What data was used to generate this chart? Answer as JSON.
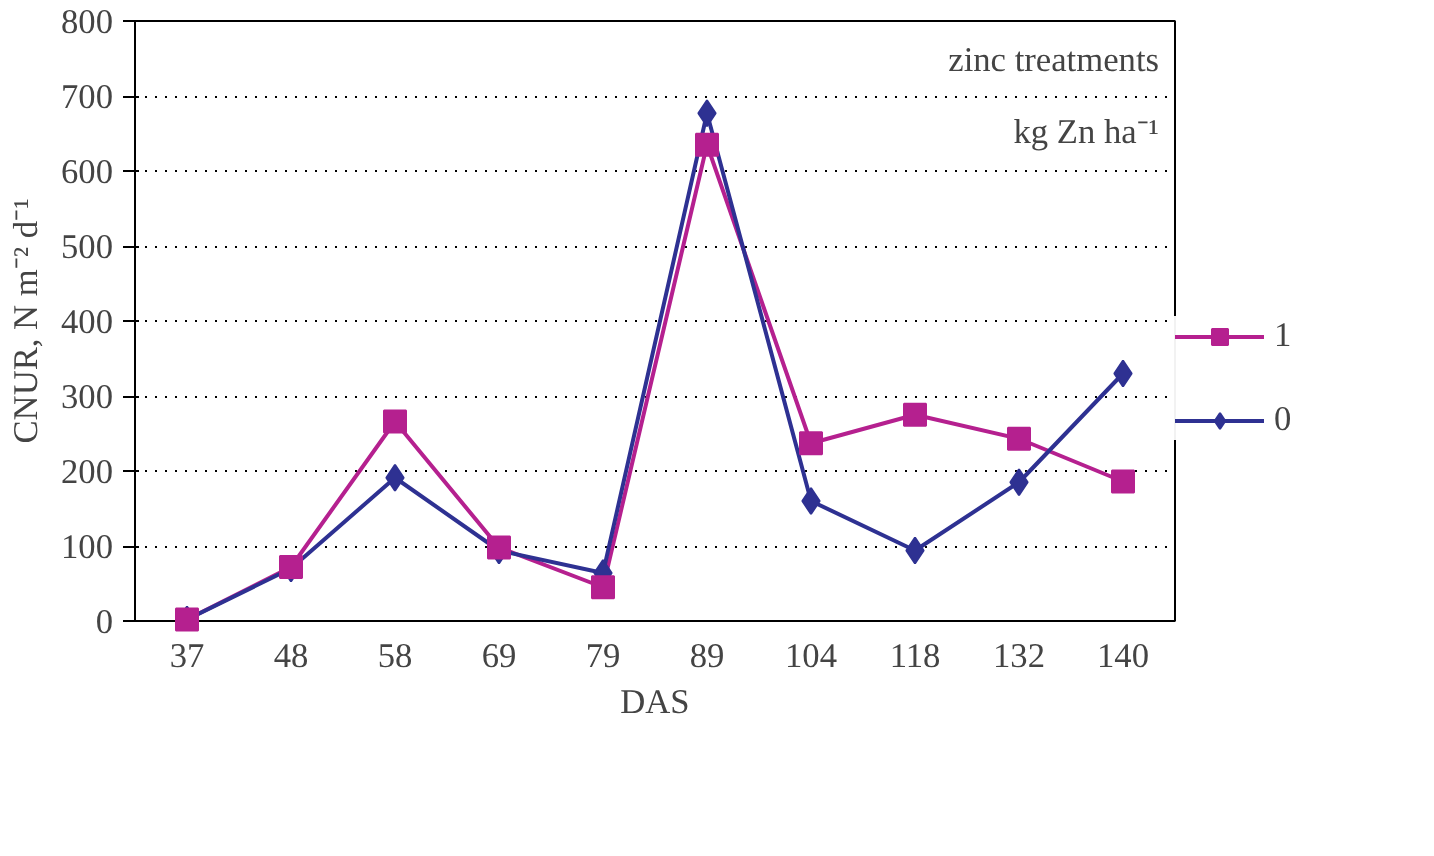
{
  "chart_data": {
    "type": "line",
    "xlabel": "DAS",
    "ylabel": "CNUR, N m⁻² d⁻¹",
    "categories": [
      "37",
      "48",
      "58",
      "69",
      "79",
      "89",
      "104",
      "118",
      "132",
      "140"
    ],
    "series": [
      {
        "name": "1",
        "color": "#b5208f",
        "marker": "square",
        "values": [
          2,
          72,
          266,
          98,
          45,
          635,
          237,
          275,
          243,
          186
        ]
      },
      {
        "name": "0",
        "color": "#2e3192",
        "marker": "diamond",
        "values": [
          2,
          70,
          191,
          94,
          64,
          677,
          160,
          94,
          185,
          330
        ]
      }
    ],
    "ylim": [
      0,
      800
    ],
    "yticks": [
      0,
      100,
      200,
      300,
      400,
      500,
      600,
      700,
      800
    ],
    "grid": "y",
    "legend": "right",
    "line_style": "solid",
    "annotations": [
      "zinc treatments",
      "kg Zn ha⁻¹"
    ]
  }
}
